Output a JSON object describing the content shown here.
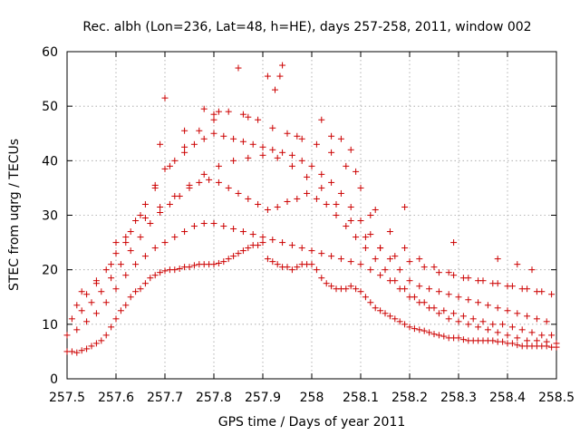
{
  "chart_data": {
    "type": "scatter",
    "title": "Rec. albh (Lon=236, Lat=48, h=HE), days 257-258, 2011, window 002",
    "xlabel": "GPS time / Days of year 2011",
    "ylabel": "STEC from uqrg / TECUs",
    "xlim": [
      257.5,
      258.5
    ],
    "ylim": [
      0,
      60
    ],
    "xticks": [
      257.5,
      257.6,
      257.7,
      257.8,
      257.9,
      258.0,
      258.1,
      258.2,
      258.3,
      258.4,
      258.5
    ],
    "xtick_labels": [
      "257.5",
      "257.6",
      "257.7",
      "257.8",
      "257.9",
      "258",
      "258.1",
      "258.2",
      "258.3",
      "258.4",
      "258.5"
    ],
    "yticks": [
      0,
      10,
      20,
      30,
      40,
      50,
      60
    ],
    "ytick_labels": [
      "0",
      "10",
      "20",
      "30",
      "40",
      "50",
      "60"
    ],
    "grid": true,
    "marker": "plus",
    "color": "#cc0000",
    "series": [
      {
        "x": [
          257.5,
          257.51,
          257.52,
          257.53,
          257.54,
          257.55,
          257.56,
          257.57,
          257.58,
          257.59,
          257.6,
          257.61,
          257.62,
          257.63,
          257.64,
          257.65,
          257.66,
          257.67,
          257.68,
          257.69,
          257.7,
          257.71,
          257.72,
          257.73,
          257.74,
          257.75,
          257.76,
          257.77,
          257.78,
          257.79,
          257.8,
          257.81,
          257.82,
          257.83,
          257.84,
          257.85,
          257.86,
          257.87,
          257.88,
          257.89,
          257.9,
          257.91,
          257.92,
          257.93,
          257.94,
          257.95,
          257.96,
          257.97,
          257.98,
          257.99,
          258.0,
          258.01,
          258.02,
          258.03,
          258.04,
          258.05,
          258.06,
          258.07,
          258.08,
          258.09,
          258.1,
          258.11,
          258.12,
          258.13,
          258.14,
          258.15,
          258.16,
          258.17,
          258.18,
          258.19,
          258.2,
          258.21,
          258.22,
          258.23,
          258.24,
          258.25,
          258.26,
          258.27,
          258.28,
          258.29,
          258.3,
          258.31,
          258.32,
          258.33,
          258.34,
          258.35,
          258.36,
          258.37,
          258.38,
          258.39,
          258.4,
          258.41,
          258.42,
          258.43,
          258.44,
          258.45,
          258.46,
          258.47,
          258.48,
          258.49,
          258.5
        ],
        "y": [
          5.0,
          5.0,
          4.8,
          5.2,
          5.5,
          6.0,
          6.5,
          7.0,
          8.0,
          9.5,
          11.0,
          12.5,
          13.5,
          15.0,
          16.0,
          16.5,
          17.5,
          18.5,
          19.0,
          19.5,
          19.8,
          20.0,
          20.0,
          20.2,
          20.5,
          20.5,
          20.8,
          21.0,
          21.0,
          21.0,
          21.0,
          21.2,
          21.5,
          22.0,
          22.5,
          23.0,
          23.5,
          24.0,
          24.5,
          24.5,
          25.0,
          22.0,
          21.5,
          21.0,
          20.5,
          20.5,
          20.0,
          20.5,
          21.0,
          21.0,
          21.0,
          20.0,
          18.5,
          17.5,
          17.0,
          16.5,
          16.5,
          16.5,
          17.0,
          16.5,
          16.0,
          15.0,
          14.0,
          13.0,
          12.5,
          12.0,
          11.5,
          11.0,
          10.5,
          10.0,
          9.5,
          9.2,
          9.0,
          8.8,
          8.5,
          8.2,
          8.0,
          7.8,
          7.5,
          7.5,
          7.5,
          7.2,
          7.0,
          7.0,
          7.0,
          7.0,
          7.0,
          7.0,
          6.8,
          6.8,
          6.5,
          6.5,
          6.2,
          6.0,
          6.0,
          6.0,
          6.0,
          6.0,
          6.0,
          5.8,
          5.8
        ]
      },
      {
        "x": [
          257.5,
          257.52,
          257.54,
          257.56,
          257.58,
          257.6,
          257.62,
          257.64,
          257.66,
          257.68,
          257.7,
          257.72,
          257.74,
          257.76,
          257.78,
          257.8,
          257.82,
          257.84,
          257.86,
          257.88,
          257.9,
          257.92,
          257.94,
          257.96,
          257.98,
          258.0,
          258.02,
          258.04,
          258.06,
          258.08,
          258.1,
          258.12,
          258.14,
          258.16,
          258.18,
          258.2,
          258.22,
          258.24,
          258.26,
          258.28,
          258.3,
          258.32,
          258.34,
          258.36,
          258.38,
          258.4,
          258.42,
          258.44,
          258.46,
          258.48,
          258.5
        ],
        "y": [
          8.0,
          9.0,
          10.5,
          12.0,
          14.0,
          16.5,
          19.0,
          21.0,
          22.5,
          24.0,
          25.0,
          26.0,
          27.0,
          28.0,
          28.5,
          28.5,
          28.0,
          27.5,
          27.0,
          26.5,
          26.0,
          25.5,
          25.0,
          24.5,
          24.0,
          23.5,
          23.0,
          22.5,
          22.0,
          21.5,
          21.0,
          20.0,
          19.0,
          18.0,
          16.5,
          15.0,
          14.0,
          13.0,
          12.0,
          11.0,
          10.5,
          10.0,
          9.5,
          9.0,
          8.5,
          8.0,
          7.5,
          7.0,
          7.0,
          6.8,
          6.5
        ]
      },
      {
        "x": [
          257.51,
          257.53,
          257.55,
          257.57,
          257.59,
          257.61,
          257.63,
          257.65,
          257.67,
          257.69,
          257.71,
          257.73,
          257.75,
          257.77,
          257.79,
          257.81,
          257.83,
          257.85,
          257.87,
          257.89,
          257.91,
          257.93,
          257.95,
          257.97,
          257.99,
          258.01,
          258.03,
          258.05,
          258.07,
          258.09,
          258.11,
          258.13,
          258.15,
          258.17,
          258.19,
          258.21,
          258.23,
          258.25,
          258.27,
          258.29,
          258.31,
          258.33,
          258.35,
          258.37,
          258.39,
          258.41,
          258.43,
          258.45,
          258.47,
          258.49
        ],
        "y": [
          11.0,
          12.5,
          14.0,
          16.0,
          18.5,
          21.0,
          23.5,
          26.0,
          28.5,
          30.5,
          32.0,
          33.5,
          35.0,
          36.0,
          36.5,
          36.0,
          35.0,
          34.0,
          33.0,
          32.0,
          31.0,
          31.5,
          32.5,
          33.0,
          34.0,
          33.0,
          32.0,
          30.0,
          28.0,
          26.0,
          24.0,
          22.0,
          20.0,
          18.0,
          16.5,
          15.0,
          14.0,
          13.0,
          12.5,
          12.0,
          11.5,
          11.0,
          10.5,
          10.0,
          10.0,
          9.5,
          9.0,
          8.5,
          8.0,
          8.0
        ]
      },
      {
        "x": [
          257.52,
          257.54,
          257.56,
          257.58,
          257.6,
          257.62,
          257.64,
          257.66,
          257.68,
          257.7,
          257.72,
          257.74,
          257.76,
          257.78,
          257.8,
          257.82,
          257.84,
          257.86,
          257.88,
          257.9,
          257.92,
          257.94,
          257.96,
          257.98,
          258.0,
          258.02,
          258.04,
          258.06,
          258.08,
          258.1,
          258.12,
          258.14,
          258.16,
          258.18,
          258.2,
          258.22,
          258.24,
          258.26,
          258.28,
          258.3,
          258.32,
          258.34,
          258.36,
          258.38,
          258.4,
          258.42,
          258.44,
          258.46,
          258.48
        ],
        "y": [
          13.5,
          15.5,
          17.5,
          20.0,
          23.0,
          26.0,
          29.0,
          32.0,
          35.5,
          38.5,
          40.0,
          41.5,
          43.0,
          44.0,
          45.0,
          44.5,
          44.0,
          43.5,
          43.0,
          42.5,
          42.0,
          41.5,
          41.0,
          40.0,
          39.0,
          37.5,
          36.0,
          34.0,
          31.5,
          29.0,
          26.5,
          24.0,
          22.0,
          20.0,
          18.0,
          17.0,
          16.5,
          16.0,
          15.5,
          15.0,
          14.5,
          14.0,
          13.5,
          13.0,
          12.5,
          12.0,
          11.5,
          11.0,
          10.5
        ]
      },
      {
        "x": [
          257.53,
          257.56,
          257.59,
          257.62,
          257.65,
          257.68,
          257.71,
          257.74,
          257.77,
          257.8,
          257.83,
          257.86,
          257.89,
          257.92,
          257.95,
          257.98,
          258.01,
          258.04,
          258.07,
          258.1,
          258.13,
          258.16,
          258.19,
          258.22,
          258.25,
          258.28,
          258.31,
          258.34,
          258.37,
          258.4,
          258.43,
          258.46,
          258.49
        ],
        "y": [
          16.0,
          18.0,
          21.0,
          25.0,
          30.0,
          35.0,
          39.0,
          42.5,
          45.5,
          48.5,
          49.0,
          48.5,
          47.5,
          46.0,
          45.0,
          44.0,
          43.0,
          41.5,
          39.0,
          35.0,
          31.0,
          27.0,
          24.0,
          22.0,
          20.5,
          19.5,
          18.5,
          18.0,
          17.5,
          17.0,
          16.5,
          16.0,
          15.5
        ]
      },
      {
        "x": [
          257.6,
          257.63,
          257.66,
          257.69,
          257.72,
          257.75,
          257.78,
          257.81,
          257.84,
          257.87,
          257.9,
          257.93,
          257.96,
          257.99,
          258.02,
          258.05,
          258.08,
          258.11,
          258.14,
          258.17,
          258.2,
          258.23,
          258.26,
          258.29,
          258.32,
          258.35,
          258.38,
          258.41,
          258.44,
          258.47
        ],
        "y": [
          25.0,
          27.0,
          29.5,
          31.5,
          33.5,
          35.5,
          37.5,
          39.0,
          40.0,
          40.5,
          41.0,
          40.5,
          39.0,
          37.0,
          35.0,
          32.0,
          29.0,
          26.0,
          24.0,
          22.5,
          21.5,
          20.5,
          19.5,
          19.0,
          18.5,
          18.0,
          17.5,
          17.0,
          16.5,
          16.0
        ]
      },
      {
        "x": [
          257.69,
          257.7,
          257.74,
          257.78,
          257.8,
          257.81,
          257.85,
          257.87,
          257.91,
          257.925,
          257.935,
          257.94,
          257.97,
          258.02,
          258.04,
          258.06,
          258.08,
          258.09,
          258.12,
          258.19,
          258.29,
          258.38,
          258.42,
          258.45
        ],
        "y": [
          43.0,
          51.5,
          45.5,
          49.5,
          47.5,
          49.0,
          57.0,
          48.0,
          55.5,
          53.0,
          55.5,
          57.5,
          44.5,
          47.5,
          44.5,
          44.0,
          42.0,
          38.0,
          30.0,
          31.5,
          25.0,
          22.0,
          21.0,
          20.0
        ]
      }
    ]
  }
}
